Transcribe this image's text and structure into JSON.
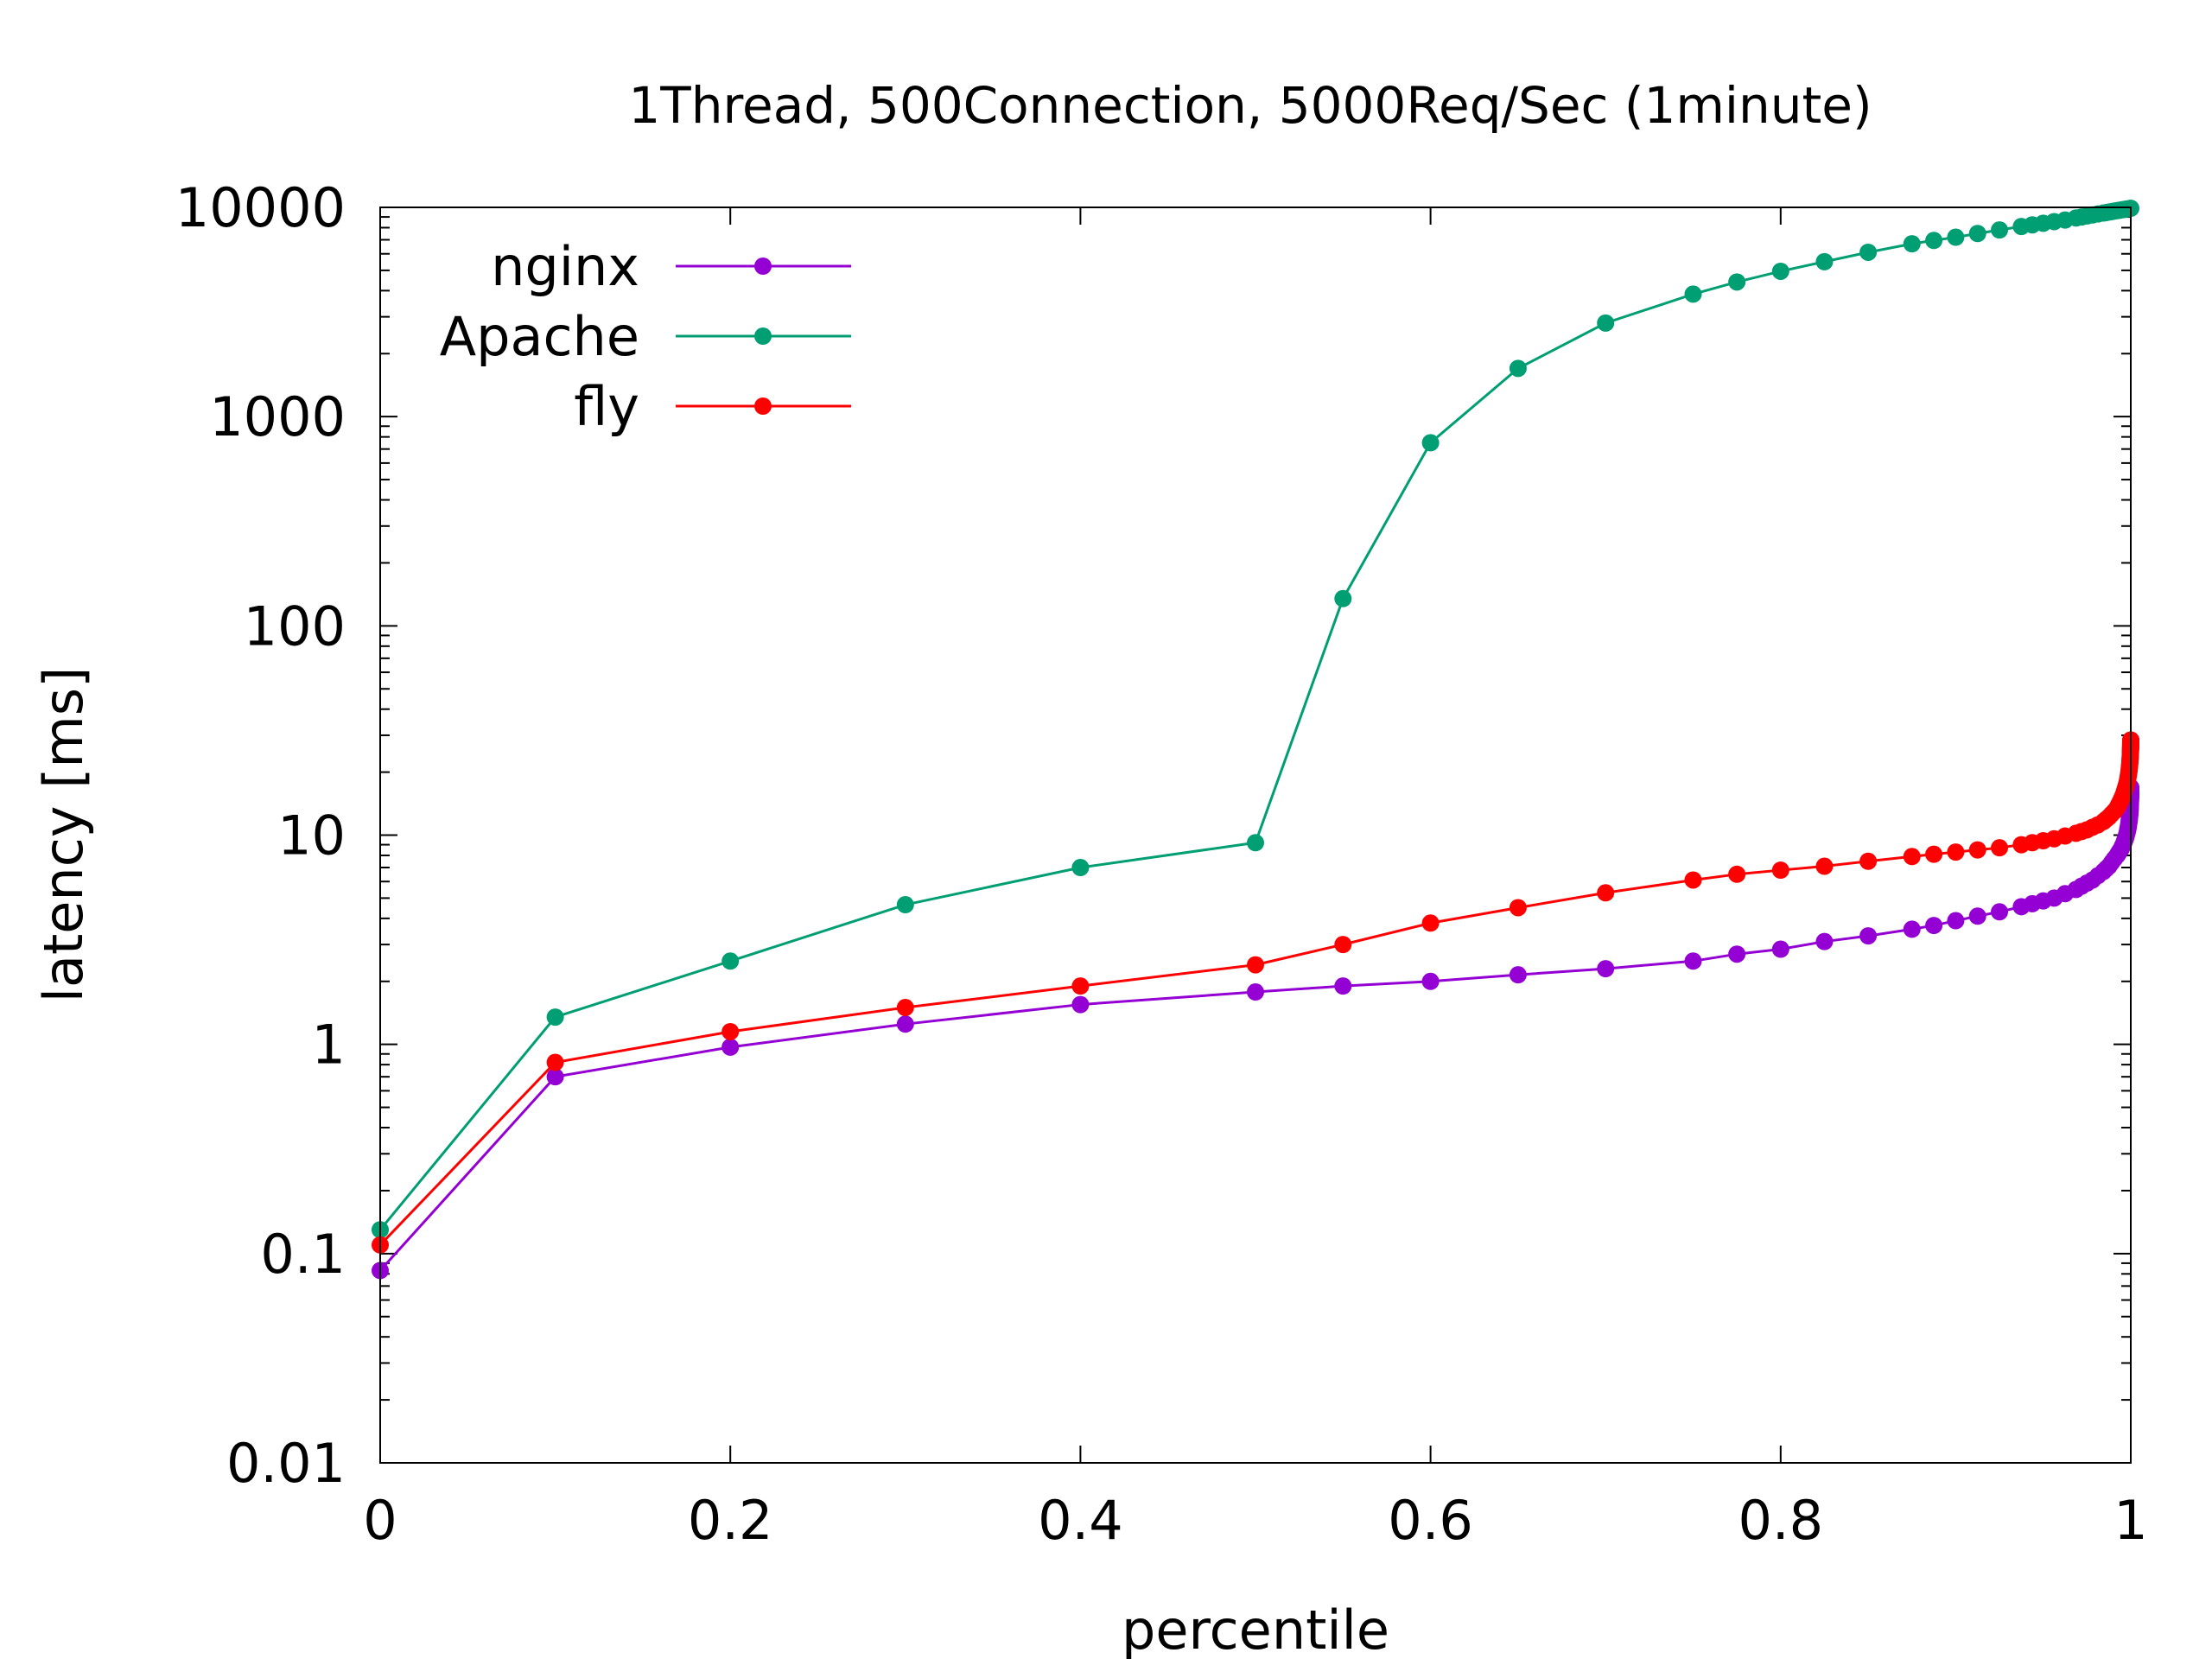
{
  "chart_data": {
    "type": "line",
    "title": "1Thread, 500Connection, 5000Req/Sec (1minute)",
    "xlabel": "percentile",
    "ylabel": "latency [ms]",
    "xlim": [
      0,
      1
    ],
    "ylim": [
      0.01,
      10000
    ],
    "yscale": "log",
    "grid": false,
    "legend_position": "top-left",
    "x_ticks": [
      {
        "value": 0,
        "label": "0"
      },
      {
        "value": 0.2,
        "label": "0.2"
      },
      {
        "value": 0.4,
        "label": "0.4"
      },
      {
        "value": 0.6,
        "label": "0.6"
      },
      {
        "value": 0.8,
        "label": "0.8"
      },
      {
        "value": 1,
        "label": "1"
      }
    ],
    "y_ticks": [
      {
        "value": 0.01,
        "label": "0.01"
      },
      {
        "value": 0.1,
        "label": "0.1"
      },
      {
        "value": 1,
        "label": "1"
      },
      {
        "value": 10,
        "label": "10"
      },
      {
        "value": 100,
        "label": "100"
      },
      {
        "value": 1000,
        "label": "1000"
      },
      {
        "value": 10000,
        "label": "10000"
      }
    ],
    "series": [
      {
        "name": "nginx",
        "color": "#9400d3",
        "x": [
          0,
          0.1,
          0.2,
          0.3,
          0.4,
          0.5,
          0.55,
          0.6,
          0.65,
          0.7,
          0.75,
          0.775,
          0.8,
          0.825,
          0.85,
          0.875,
          0.8875,
          0.9,
          0.9125,
          0.925,
          0.9375,
          0.94375,
          0.95,
          0.95625,
          0.9625,
          0.96875,
          0.971875,
          0.975,
          0.978125,
          0.98125,
          0.984375,
          0.985938,
          0.9875,
          0.989062,
          0.990625,
          0.992188,
          0.992969,
          0.99375,
          0.994531,
          0.995313,
          0.996094,
          0.996484,
          0.996875,
          0.997266,
          0.997656,
          0.998047,
          0.998242,
          0.998437,
          0.998633,
          0.998828,
          0.999023,
          0.999121,
          0.999219,
          0.999316,
          0.999414,
          0.999512,
          0.99956,
          0.999609,
          0.999658,
          0.999707,
          0.999756,
          0.99978,
          0.999805,
          0.999829,
          0.999854,
          0.999878,
          0.99989,
          0.999902,
          0.999915,
          0.999927,
          0.999939,
          0.999945,
          0.999951,
          0.999957,
          0.999963,
          0.999969,
          0.999973,
          0.999976,
          0.99998,
          0.999983,
          0.999986,
          0.999988,
          0.999989,
          0.999991,
          0.999992,
          0.999994,
          0.999995,
          0.999996,
          0.999997,
          0.999998,
          1.0
        ],
        "values": [
          0.083,
          0.7,
          0.97,
          1.25,
          1.55,
          1.78,
          1.9,
          2.0,
          2.15,
          2.3,
          2.5,
          2.7,
          2.85,
          3.1,
          3.3,
          3.55,
          3.7,
          3.9,
          4.1,
          4.3,
          4.55,
          4.7,
          4.85,
          5.0,
          5.25,
          5.5,
          5.7,
          5.9,
          6.1,
          6.4,
          6.7,
          6.9,
          7.1,
          7.4,
          7.7,
          8.0,
          8.2,
          8.4,
          8.6,
          8.9,
          9.2,
          9.4,
          9.6,
          9.8,
          10.1,
          10.4,
          10.6,
          10.8,
          11.0,
          11.3,
          11.6,
          11.8,
          12.0,
          12.2,
          12.4,
          12.7,
          12.9,
          13.1,
          13.3,
          13.5,
          13.8,
          14.0,
          14.2,
          14.4,
          14.6,
          14.8,
          15.0,
          15.1,
          15.2,
          15.4,
          15.5,
          15.6,
          15.7,
          15.8,
          15.9,
          16.0,
          16.1,
          16.15,
          16.2,
          16.3,
          16.35,
          16.4,
          16.45,
          16.5,
          16.55,
          16.6,
          16.65,
          16.7,
          16.75,
          16.8,
          16.9
        ]
      },
      {
        "name": "Apache",
        "color": "#009e73",
        "x": [
          0,
          0.1,
          0.2,
          0.3,
          0.4,
          0.5,
          0.55,
          0.6,
          0.65,
          0.7,
          0.75,
          0.775,
          0.8,
          0.825,
          0.85,
          0.875,
          0.8875,
          0.9,
          0.9125,
          0.925,
          0.9375,
          0.94375,
          0.95,
          0.95625,
          0.9625,
          0.96875,
          0.971875,
          0.975,
          0.978125,
          0.98125,
          0.984375,
          0.985938,
          0.9875,
          0.989062,
          0.990625,
          0.992188,
          0.99375,
          0.995313,
          0.996875,
          0.998437,
          1.0
        ],
        "values": [
          0.13,
          1.35,
          2.5,
          4.65,
          7.0,
          9.2,
          135,
          750,
          1700,
          2800,
          3850,
          4400,
          4950,
          5500,
          6100,
          6700,
          6950,
          7200,
          7500,
          7800,
          8100,
          8250,
          8400,
          8550,
          8700,
          8900,
          9000,
          9100,
          9200,
          9300,
          9400,
          9450,
          9500,
          9550,
          9600,
          9650,
          9700,
          9750,
          9800,
          9850,
          9900
        ]
      },
      {
        "name": "fly",
        "color": "#ff0000",
        "x": [
          0,
          0.1,
          0.2,
          0.3,
          0.4,
          0.5,
          0.55,
          0.6,
          0.65,
          0.7,
          0.75,
          0.775,
          0.8,
          0.825,
          0.85,
          0.875,
          0.8875,
          0.9,
          0.9125,
          0.925,
          0.9375,
          0.94375,
          0.95,
          0.95625,
          0.9625,
          0.96875,
          0.971875,
          0.975,
          0.978125,
          0.98125,
          0.984375,
          0.985938,
          0.9875,
          0.989062,
          0.990625,
          0.992188,
          0.992969,
          0.99375,
          0.994531,
          0.995313,
          0.996094,
          0.996484,
          0.996875,
          0.997266,
          0.997656,
          0.998047,
          0.998242,
          0.998437,
          0.998633,
          0.998828,
          0.999023,
          0.999121,
          0.999219,
          0.999316,
          0.999414,
          0.999512,
          0.99956,
          0.999609,
          0.999658,
          0.999707,
          0.999756,
          0.99978,
          0.999805,
          0.999829,
          0.999854,
          0.999878,
          0.99989,
          0.999902,
          0.999915,
          0.999927,
          0.999939,
          0.999945,
          0.999951,
          0.999957,
          0.999963,
          0.999969,
          0.999973,
          0.999976,
          0.99998,
          0.999983,
          0.999986,
          0.999988,
          0.999989,
          0.999991,
          0.999992,
          0.999994,
          0.999995,
          0.999996,
          0.999997,
          0.999998,
          1.0
        ],
        "values": [
          0.11,
          0.82,
          1.15,
          1.5,
          1.9,
          2.4,
          3.0,
          3.8,
          4.5,
          5.3,
          6.1,
          6.5,
          6.8,
          7.1,
          7.5,
          7.9,
          8.1,
          8.3,
          8.5,
          8.7,
          9.0,
          9.2,
          9.4,
          9.6,
          9.9,
          10.2,
          10.4,
          10.6,
          10.9,
          11.2,
          11.6,
          11.9,
          12.2,
          12.6,
          13.0,
          13.5,
          13.9,
          14.3,
          14.8,
          15.3,
          15.9,
          16.3,
          16.7,
          17.1,
          17.6,
          18.1,
          18.5,
          18.9,
          19.3,
          19.8,
          20.3,
          20.7,
          21.1,
          21.5,
          21.9,
          22.4,
          22.8,
          23.1,
          23.5,
          23.8,
          24.2,
          24.5,
          24.8,
          25.1,
          25.4,
          25.7,
          25.9,
          26.1,
          26.3,
          26.5,
          26.7,
          26.9,
          27.0,
          27.2,
          27.3,
          27.4,
          27.5,
          27.6,
          27.7,
          27.8,
          27.9,
          28.0,
          28.05,
          28.1,
          28.15,
          28.2,
          28.25,
          28.3,
          28.35,
          28.4,
          28.5
        ]
      }
    ]
  }
}
